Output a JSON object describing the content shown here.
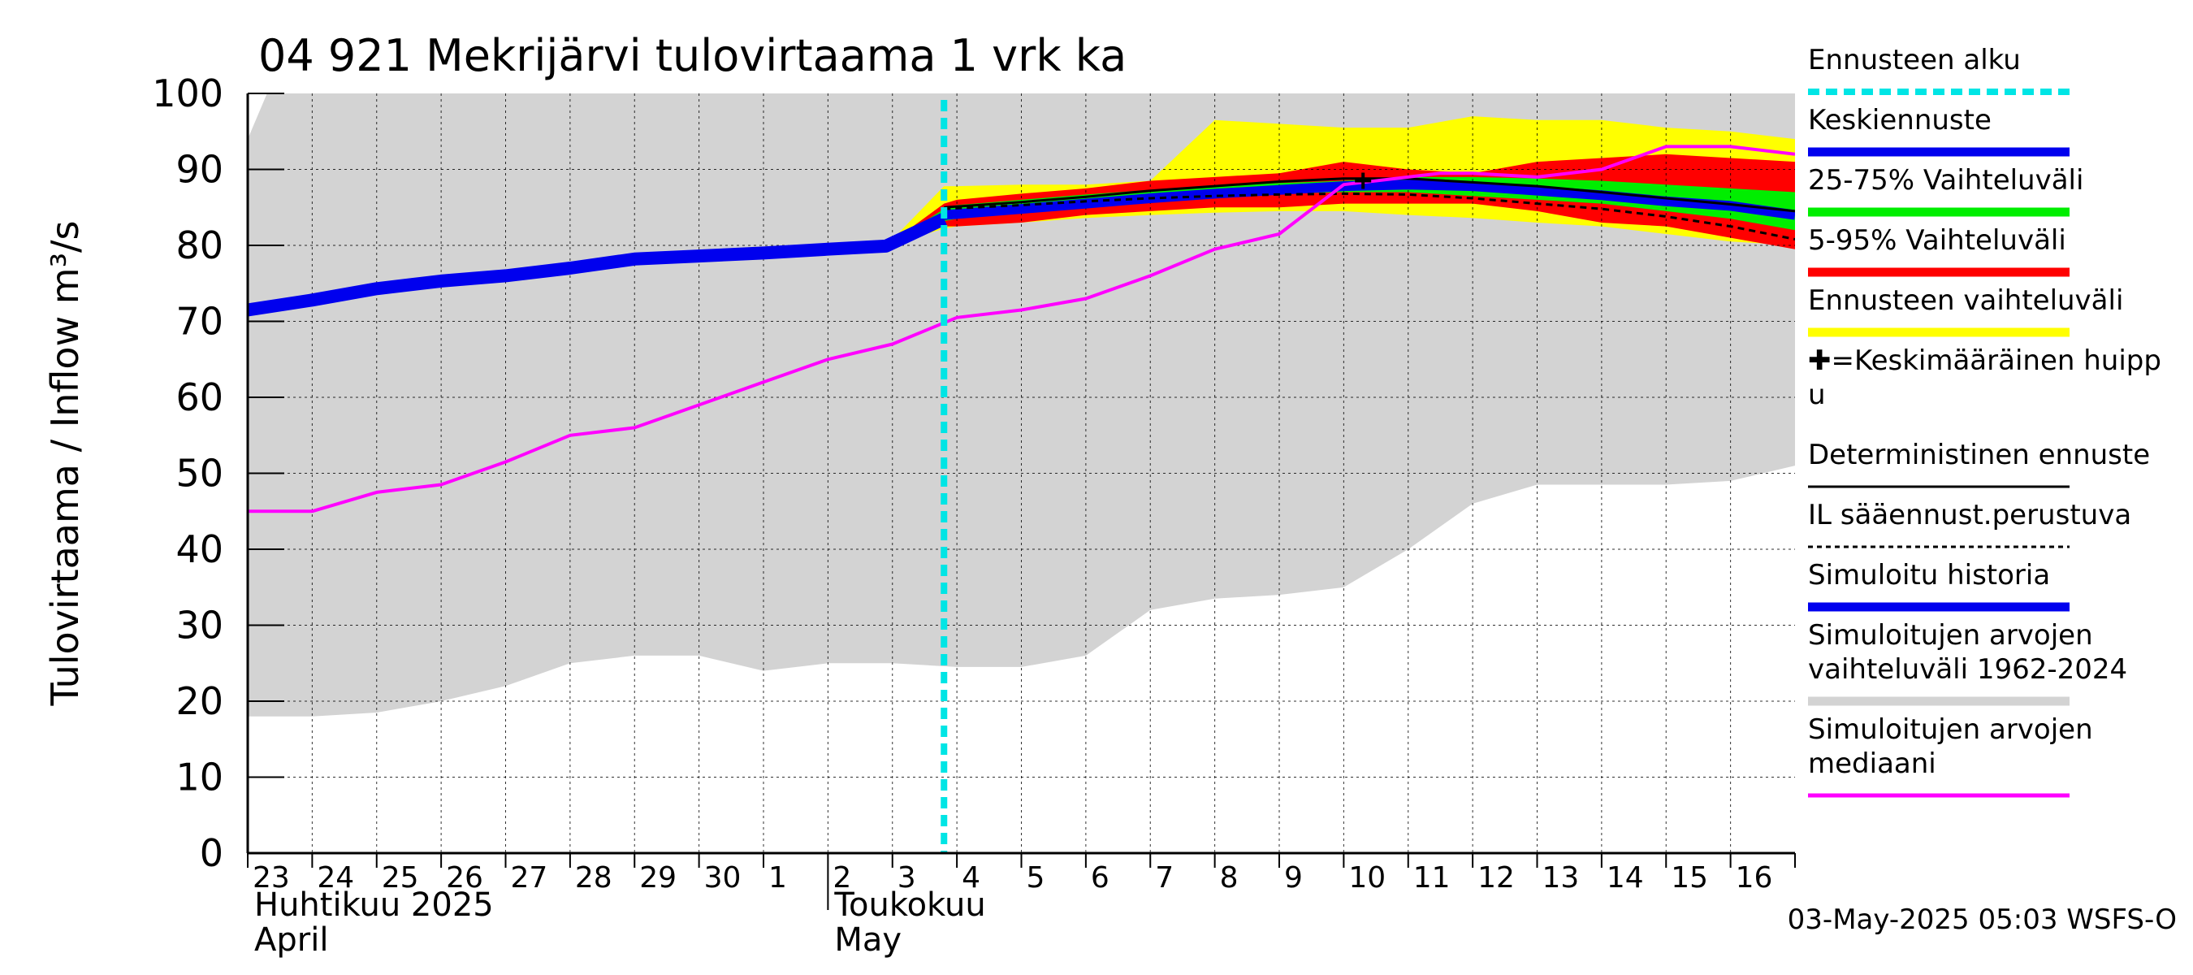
{
  "chart_data": {
    "type": "area",
    "title": "04 921 Mekrijärvi tulovirtaama 1 vrk ka",
    "ylabel": "Tulovirtaama / Inflow    m³/s",
    "ylim": [
      0,
      100
    ],
    "yticks": [
      "0",
      "10",
      "20",
      "30",
      "40",
      "50",
      "60",
      "70",
      "80",
      "90",
      "100"
    ],
    "xlim": [
      0,
      24
    ],
    "days": [
      "23",
      "24",
      "25",
      "26",
      "27",
      "28",
      "29",
      "30",
      "1",
      "2",
      "3",
      "4",
      "5",
      "6",
      "7",
      "8",
      "9",
      "10",
      "11",
      "12",
      "13",
      "14",
      "15",
      "16"
    ],
    "month_labels": [
      {
        "fi": "Huhtikuu  2025",
        "en": "April",
        "start": 0
      },
      {
        "fi": "Toukokuu",
        "en": "May",
        "start": 9
      }
    ],
    "forecast_start": 10.8,
    "historical_range": {
      "x": [
        0,
        0.3,
        1,
        2,
        3,
        4,
        5,
        6,
        7,
        8,
        9,
        10,
        11,
        12,
        13,
        14,
        15,
        16,
        17,
        18,
        19,
        20,
        21,
        22,
        23,
        24
      ],
      "low": [
        18,
        18,
        18,
        18.5,
        20,
        22,
        25,
        26,
        26,
        24,
        25,
        25,
        24.5,
        24.5,
        26,
        32,
        33.5,
        34,
        35,
        40,
        46,
        48.5,
        48.5,
        48.5,
        49,
        51
      ],
      "high": [
        94,
        100,
        100,
        100,
        100,
        100,
        100,
        100,
        100,
        100,
        100,
        100,
        100,
        100,
        100,
        100,
        100,
        100,
        100,
        100,
        100,
        100,
        100,
        100,
        100,
        100
      ]
    },
    "forecast_range": {
      "x": [
        9.9,
        10.8,
        11,
        12,
        13,
        14,
        15,
        16,
        17,
        18,
        19,
        20,
        21,
        22,
        23,
        24
      ],
      "low": [
        79.9,
        82.2,
        82.5,
        83,
        83.6,
        84,
        84.3,
        84.5,
        84.5,
        84,
        83.6,
        83,
        82.5,
        81.5,
        80.5,
        80
      ],
      "high": [
        79.9,
        87.8,
        87.8,
        88,
        88,
        88.5,
        96.5,
        96,
        95.5,
        95.5,
        97,
        96.5,
        96.5,
        95.5,
        95,
        94
      ]
    },
    "p5_95": {
      "x": [
        9.9,
        10.8,
        11,
        12,
        13,
        14,
        15,
        16,
        17,
        18,
        19,
        20,
        21,
        22,
        23,
        24
      ],
      "low": [
        79.9,
        82.5,
        82.5,
        83,
        84,
        84.5,
        85,
        85,
        85.5,
        85.5,
        85.5,
        84.5,
        83,
        82.5,
        81,
        79.5
      ],
      "high": [
        79.9,
        85.5,
        86,
        86.8,
        87.5,
        88.5,
        89,
        89.5,
        91,
        90,
        89.5,
        91,
        91.5,
        92,
        91.5,
        91
      ]
    },
    "p25_75": {
      "x": [
        9.9,
        10.8,
        11,
        12,
        13,
        14,
        15,
        16,
        17,
        18,
        19,
        20,
        21,
        22,
        23,
        24
      ],
      "low": [
        79.9,
        83.2,
        83.5,
        84.3,
        85,
        85.8,
        86.3,
        86.8,
        87,
        87,
        86.5,
        86,
        85.5,
        84.5,
        83.5,
        82
      ],
      "high": [
        79.9,
        84.8,
        85.3,
        86,
        86.7,
        87.3,
        87.8,
        88.2,
        88.5,
        89,
        89,
        88.8,
        88.5,
        88,
        87.5,
        87
      ]
    },
    "series": [
      {
        "name": "Simuloitu historia",
        "color": "#0000ee",
        "x": [
          0,
          1,
          2,
          3,
          4,
          5,
          6,
          7,
          8,
          9,
          9.9,
          10.8
        ],
        "values": [
          71.5,
          72.8,
          74.3,
          75.3,
          76,
          77,
          78.2,
          78.6,
          79,
          79.5,
          79.9,
          83.5
        ]
      },
      {
        "name": "Keskiennuste",
        "color": "#0000ee",
        "x": [
          10.8,
          12,
          13,
          14,
          15,
          16,
          17,
          18,
          19,
          20,
          21,
          22,
          23,
          24
        ],
        "values": [
          84,
          84.8,
          85.5,
          86.2,
          86.8,
          87.3,
          87.8,
          88,
          87.8,
          87.2,
          86.6,
          85.8,
          85.2,
          84
        ]
      },
      {
        "name": "Deterministinen ennuste",
        "color": "#000000",
        "x": [
          10.8,
          12,
          13,
          14,
          15,
          16,
          17,
          18,
          19,
          20,
          21,
          22,
          23,
          24
        ],
        "values": [
          85,
          85.7,
          86.4,
          87.2,
          87.8,
          88.4,
          88.8,
          88.8,
          88.3,
          87.8,
          87,
          86.2,
          85.4,
          84.5
        ]
      },
      {
        "name": "IL sääennust.perustuva",
        "color": "#000000",
        "x": [
          10.8,
          12,
          13,
          14,
          15,
          16,
          17,
          18,
          19,
          20,
          21,
          22,
          23,
          24
        ],
        "values": [
          84.8,
          85.3,
          85.8,
          86.2,
          86.5,
          86.7,
          86.8,
          86.7,
          86.2,
          85.5,
          84.8,
          83.8,
          82.5,
          80.8
        ]
      },
      {
        "name": "Simuloitujen arvojen mediaani",
        "color": "#ff00ff",
        "x": [
          0,
          1,
          2,
          3,
          4,
          5,
          6,
          7,
          8,
          9,
          10,
          11,
          12,
          13,
          14,
          15,
          16,
          17,
          18,
          18.5,
          19,
          20,
          21,
          22,
          23,
          24
        ],
        "values": [
          45,
          45,
          47.5,
          48.5,
          51.5,
          55,
          56,
          59,
          62,
          65,
          67,
          70.5,
          71.5,
          73,
          76,
          79.5,
          81.5,
          88,
          89,
          89.5,
          89.5,
          89,
          90,
          93,
          93,
          92
        ]
      }
    ],
    "mean_peak": {
      "x": 17.3,
      "y": 88.5
    },
    "legend": [
      {
        "label": "Ennusteen alku",
        "color": "#00e5e5",
        "style": "dotted"
      },
      {
        "label": "Keskiennuste",
        "color": "#0000ee",
        "style": "thick"
      },
      {
        "label": "25-75% Vaihteluväli",
        "color": "#00ee00",
        "style": "thick"
      },
      {
        "label": "5-95% Vaihteluväli",
        "color": "#ff0000",
        "style": "thick"
      },
      {
        "label": "Ennusteen vaihteluväli",
        "color": "#ffff00",
        "style": "thick"
      },
      {
        "label": "✚=Keskimääräinen huipp|u",
        "color": "#000000",
        "style": "none"
      },
      {
        "label": "Deterministinen ennuste",
        "color": "#000000",
        "style": "thin"
      },
      {
        "label": "IL sääennust.perustuva",
        "color": "#000000",
        "style": "dashed"
      },
      {
        "label": "Simuloitu historia",
        "color": "#0000ee",
        "style": "thick"
      },
      {
        "label": "Simuloitujen arvojen|vaihteluväli 1962-2024",
        "color": "#d3d3d3",
        "style": "thick"
      },
      {
        "label": "Simuloitujen arvojen|mediaani",
        "color": "#ff00ff",
        "style": "medium"
      }
    ],
    "footer": "03-May-2025 05:03 WSFS-O"
  }
}
